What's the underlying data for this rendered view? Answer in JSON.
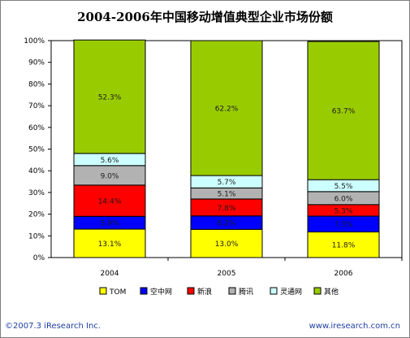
{
  "chart_data": {
    "type": "bar",
    "stacked": true,
    "title": "2004-2006年中国移动增值典型企业市场份额",
    "categories": [
      "2004",
      "2005",
      "2006"
    ],
    "series": [
      {
        "name": "TOM",
        "color": "#ffff00",
        "values": [
          13.1,
          13.0,
          11.8
        ]
      },
      {
        "name": "空中网",
        "color": "#0000ff",
        "values": [
          5.9,
          6.2,
          7.3
        ]
      },
      {
        "name": "新浪",
        "color": "#ff0000",
        "values": [
          14.4,
          7.8,
          5.3
        ]
      },
      {
        "name": "腾讯",
        "color": "#b2b2b2",
        "values": [
          9.0,
          5.1,
          6.0
        ]
      },
      {
        "name": "灵通网",
        "color": "#ccffff",
        "values": [
          5.6,
          5.7,
          5.5
        ]
      },
      {
        "name": "其他",
        "color": "#99cc00",
        "values": [
          52.3,
          62.2,
          63.7
        ]
      }
    ],
    "value_labels": [
      [
        "13.1%",
        "5.9%",
        "14.4%",
        "9.0%",
        "5.6%",
        "52.3%"
      ],
      [
        "13.0%",
        "6.2%",
        "7.8%",
        "5.1%",
        "5.7%",
        "62.2%"
      ],
      [
        "11.8%",
        "7.3%",
        "5.3%",
        "6.0%",
        "5.5%",
        "63.7%"
      ]
    ],
    "y_ticks": [
      "0%",
      "10%",
      "20%",
      "30%",
      "40%",
      "50%",
      "60%",
      "70%",
      "80%",
      "90%",
      "100%"
    ],
    "ylim": [
      0,
      100
    ],
    "grid": false,
    "legend_position": "bottom"
  },
  "footer": {
    "left": "©2007.3 iResearch Inc.",
    "right": "www.iresearch.com.cn"
  }
}
